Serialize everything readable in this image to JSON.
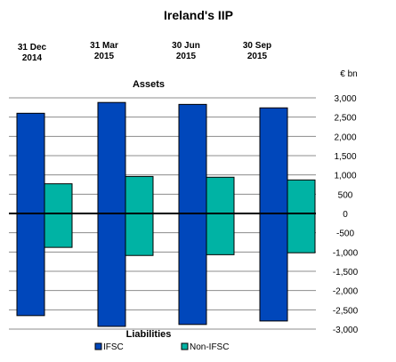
{
  "chart_data": {
    "type": "bar",
    "title": "Ireland's IIP",
    "unit_label": "€ bn",
    "top_label": "Assets",
    "bottom_label": "Liabilities",
    "categories": [
      "31 Dec\n2014",
      "31 Mar\n2015",
      "30 Jun\n2015",
      "30 Sep\n2015"
    ],
    "series": [
      {
        "name": "IFSC",
        "color": "#0047bb",
        "assets": [
          2600,
          2880,
          2830,
          2740
        ],
        "liabilities": [
          -2650,
          -2930,
          -2880,
          -2790
        ]
      },
      {
        "name": "Non-IFSC",
        "color": "#00b3a4",
        "assets": [
          770,
          960,
          940,
          870
        ],
        "liabilities": [
          -880,
          -1090,
          -1070,
          -1020
        ]
      }
    ],
    "ylim": [
      -3000,
      3000
    ],
    "yticks": [
      3000,
      2500,
      2000,
      1500,
      1000,
      500,
      0,
      -500,
      -1000,
      -1500,
      -2000,
      -2500,
      -3000
    ],
    "ytick_labels": [
      "3,000",
      "2,500",
      "2,000",
      "1,500",
      "1,000",
      "500",
      "0",
      "-500",
      "-1,000",
      "-1,500",
      "-2,000",
      "-2,500",
      "-3,000"
    ],
    "grid": true,
    "legend_position": "bottom"
  }
}
